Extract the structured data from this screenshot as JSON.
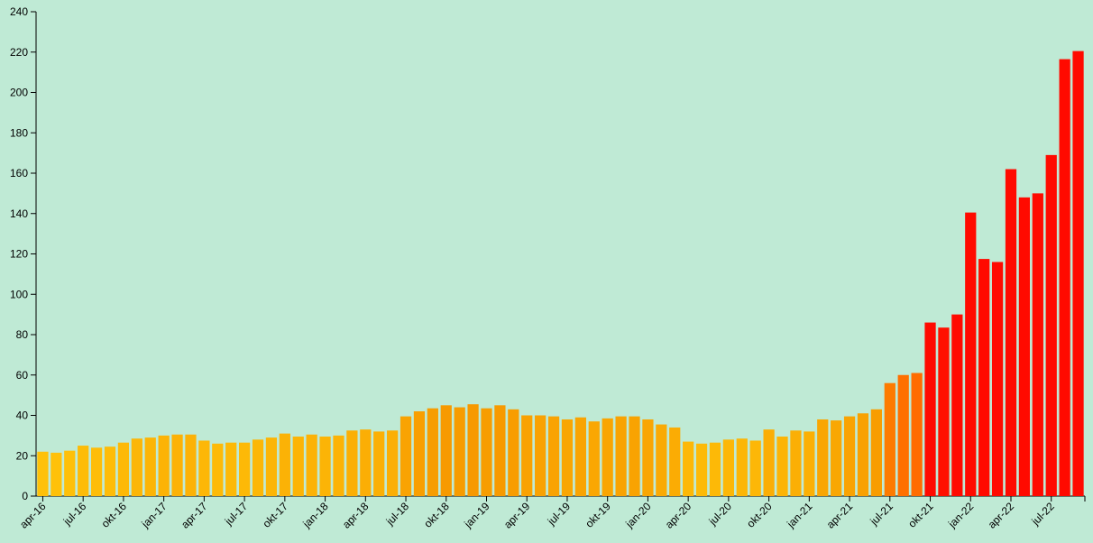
{
  "chart_data": {
    "type": "bar",
    "categories": [
      "apr-16",
      null,
      null,
      "jul-16",
      null,
      null,
      "okt-16",
      null,
      null,
      "jan-17",
      null,
      null,
      "apr-17",
      null,
      null,
      "jul-17",
      null,
      null,
      "okt-17",
      null,
      null,
      "jan-18",
      null,
      null,
      "apr-18",
      null,
      null,
      "jul-18",
      null,
      null,
      "okt-18",
      null,
      null,
      "jan-19",
      null,
      null,
      "apr-19",
      null,
      null,
      "jul-19",
      null,
      null,
      "okt-19",
      null,
      null,
      "jan-20",
      null,
      null,
      "apr-20",
      null,
      null,
      "jul-20",
      null,
      null,
      "okt-20",
      null,
      null,
      "jan-21",
      null,
      null,
      "apr-21",
      null,
      null,
      "jul-21",
      null,
      null,
      "okt-21",
      null,
      null,
      "jan-22",
      null,
      null,
      "apr-22",
      null,
      null,
      "jul-22",
      null,
      null
    ],
    "values": [
      22,
      21.5,
      22.5,
      25,
      24,
      24.5,
      26.5,
      28.5,
      29,
      30,
      30.5,
      30.5,
      27.5,
      26,
      26.5,
      26.5,
      28,
      29,
      31,
      29.5,
      30.5,
      29.5,
      30,
      32.5,
      33,
      32,
      32.5,
      39.5,
      42,
      43.5,
      45,
      44,
      45.5,
      43.5,
      45,
      43,
      40,
      40,
      39.5,
      38,
      39,
      37,
      38.5,
      39.5,
      39.5,
      38,
      35.5,
      34,
      27,
      26,
      26.5,
      28,
      28.5,
      27.5,
      33,
      29.5,
      32.5,
      32,
      38,
      37.5,
      39.5,
      41,
      43,
      56,
      60,
      61,
      86,
      83.5,
      90,
      140.5,
      117.5,
      116,
      162,
      148,
      150,
      169,
      216.5,
      220.5
    ],
    "color_scale": {
      "domain": [
        20,
        45,
        60,
        85
      ],
      "range": [
        "#ffc40a",
        "#f79a00",
        "#ff7000",
        "#ff0a00"
      ]
    },
    "ylim": [
      0,
      240
    ],
    "yticks": [
      0,
      20,
      40,
      60,
      80,
      100,
      120,
      140,
      160,
      180,
      200,
      220,
      240
    ]
  }
}
